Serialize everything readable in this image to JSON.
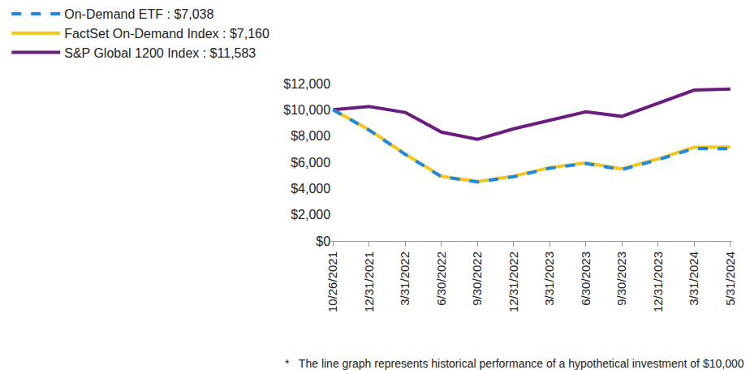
{
  "chart_data": {
    "type": "line",
    "categories": [
      "10/26/2021",
      "12/31/2021",
      "3/31/2022",
      "6/30/2022",
      "9/30/2022",
      "12/31/2022",
      "3/31/2023",
      "6/30/2023",
      "9/30/2023",
      "12/31/2023",
      "3/31/2024",
      "5/31/2024"
    ],
    "series": [
      {
        "name": "On-Demand ETF : $7,038",
        "color": "#1e88e5",
        "line_style": "dash",
        "values": [
          10000,
          8450,
          6600,
          4900,
          4500,
          4900,
          5550,
          5900,
          5450,
          6200,
          7050,
          7038
        ]
      },
      {
        "name": "FactSet On-Demand Index : $7,160",
        "color": "#f5c518",
        "line_style": "solid",
        "values": [
          10000,
          8470,
          6620,
          4930,
          4530,
          4940,
          5590,
          5950,
          5500,
          6260,
          7150,
          7160
        ]
      },
      {
        "name": "S&P Global 1200 Index : $11,583",
        "color": "#6b1d7d",
        "line_style": "solid",
        "values": [
          10000,
          10250,
          9800,
          8300,
          7750,
          8550,
          9200,
          9850,
          9500,
          10500,
          11500,
          11583
        ]
      }
    ],
    "ylim": [
      0,
      12000
    ],
    "yticks": [
      {
        "value": 0,
        "label": "$0"
      },
      {
        "value": 2000,
        "label": "$2,000"
      },
      {
        "value": 4000,
        "label": "$4,000"
      },
      {
        "value": 6000,
        "label": "$6,000"
      },
      {
        "value": 8000,
        "label": "$8,000"
      },
      {
        "value": 10000,
        "label": "$10,000"
      },
      {
        "value": 12000,
        "label": "$12,000"
      }
    ],
    "grid": false,
    "legend": "top-left",
    "annotations": [
      "*   The line graph represents historical performance of a hypothetical investment of $10,000"
    ]
  }
}
